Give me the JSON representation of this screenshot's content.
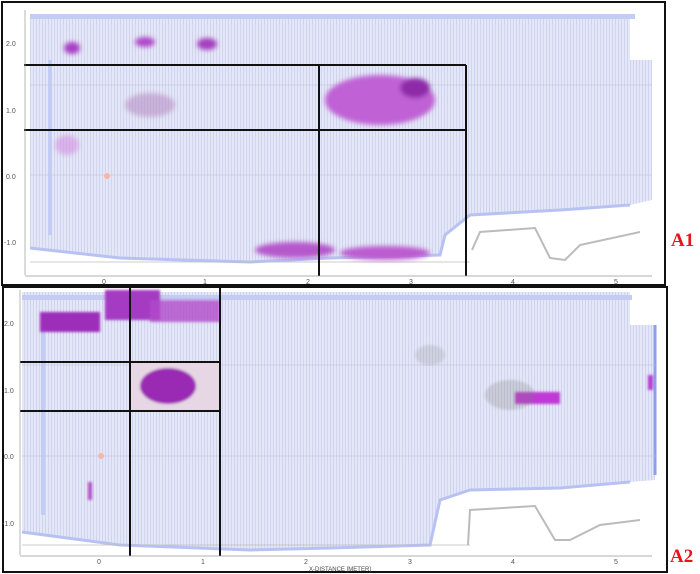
{
  "panels": [
    {
      "label": "A1",
      "y_ticks": [
        "2.0",
        "1.0",
        "0.0",
        "-1.0"
      ],
      "x_ticks": [
        "0",
        "1",
        "2",
        "3",
        "4",
        "5"
      ],
      "x_axis_label": ""
    },
    {
      "label": "A2",
      "y_ticks": [
        "2.0",
        "1.0",
        "0.0",
        "-1.0"
      ],
      "x_ticks": [
        "0",
        "1",
        "2",
        "3",
        "4",
        "5"
      ],
      "x_axis_label": "X-DISTANCE [METER]"
    }
  ],
  "colors": {
    "scan_fill": "#dfe3f5",
    "anomaly": "#b23cc8",
    "grid_box": "#111111",
    "panel_label": "#e8141c"
  }
}
